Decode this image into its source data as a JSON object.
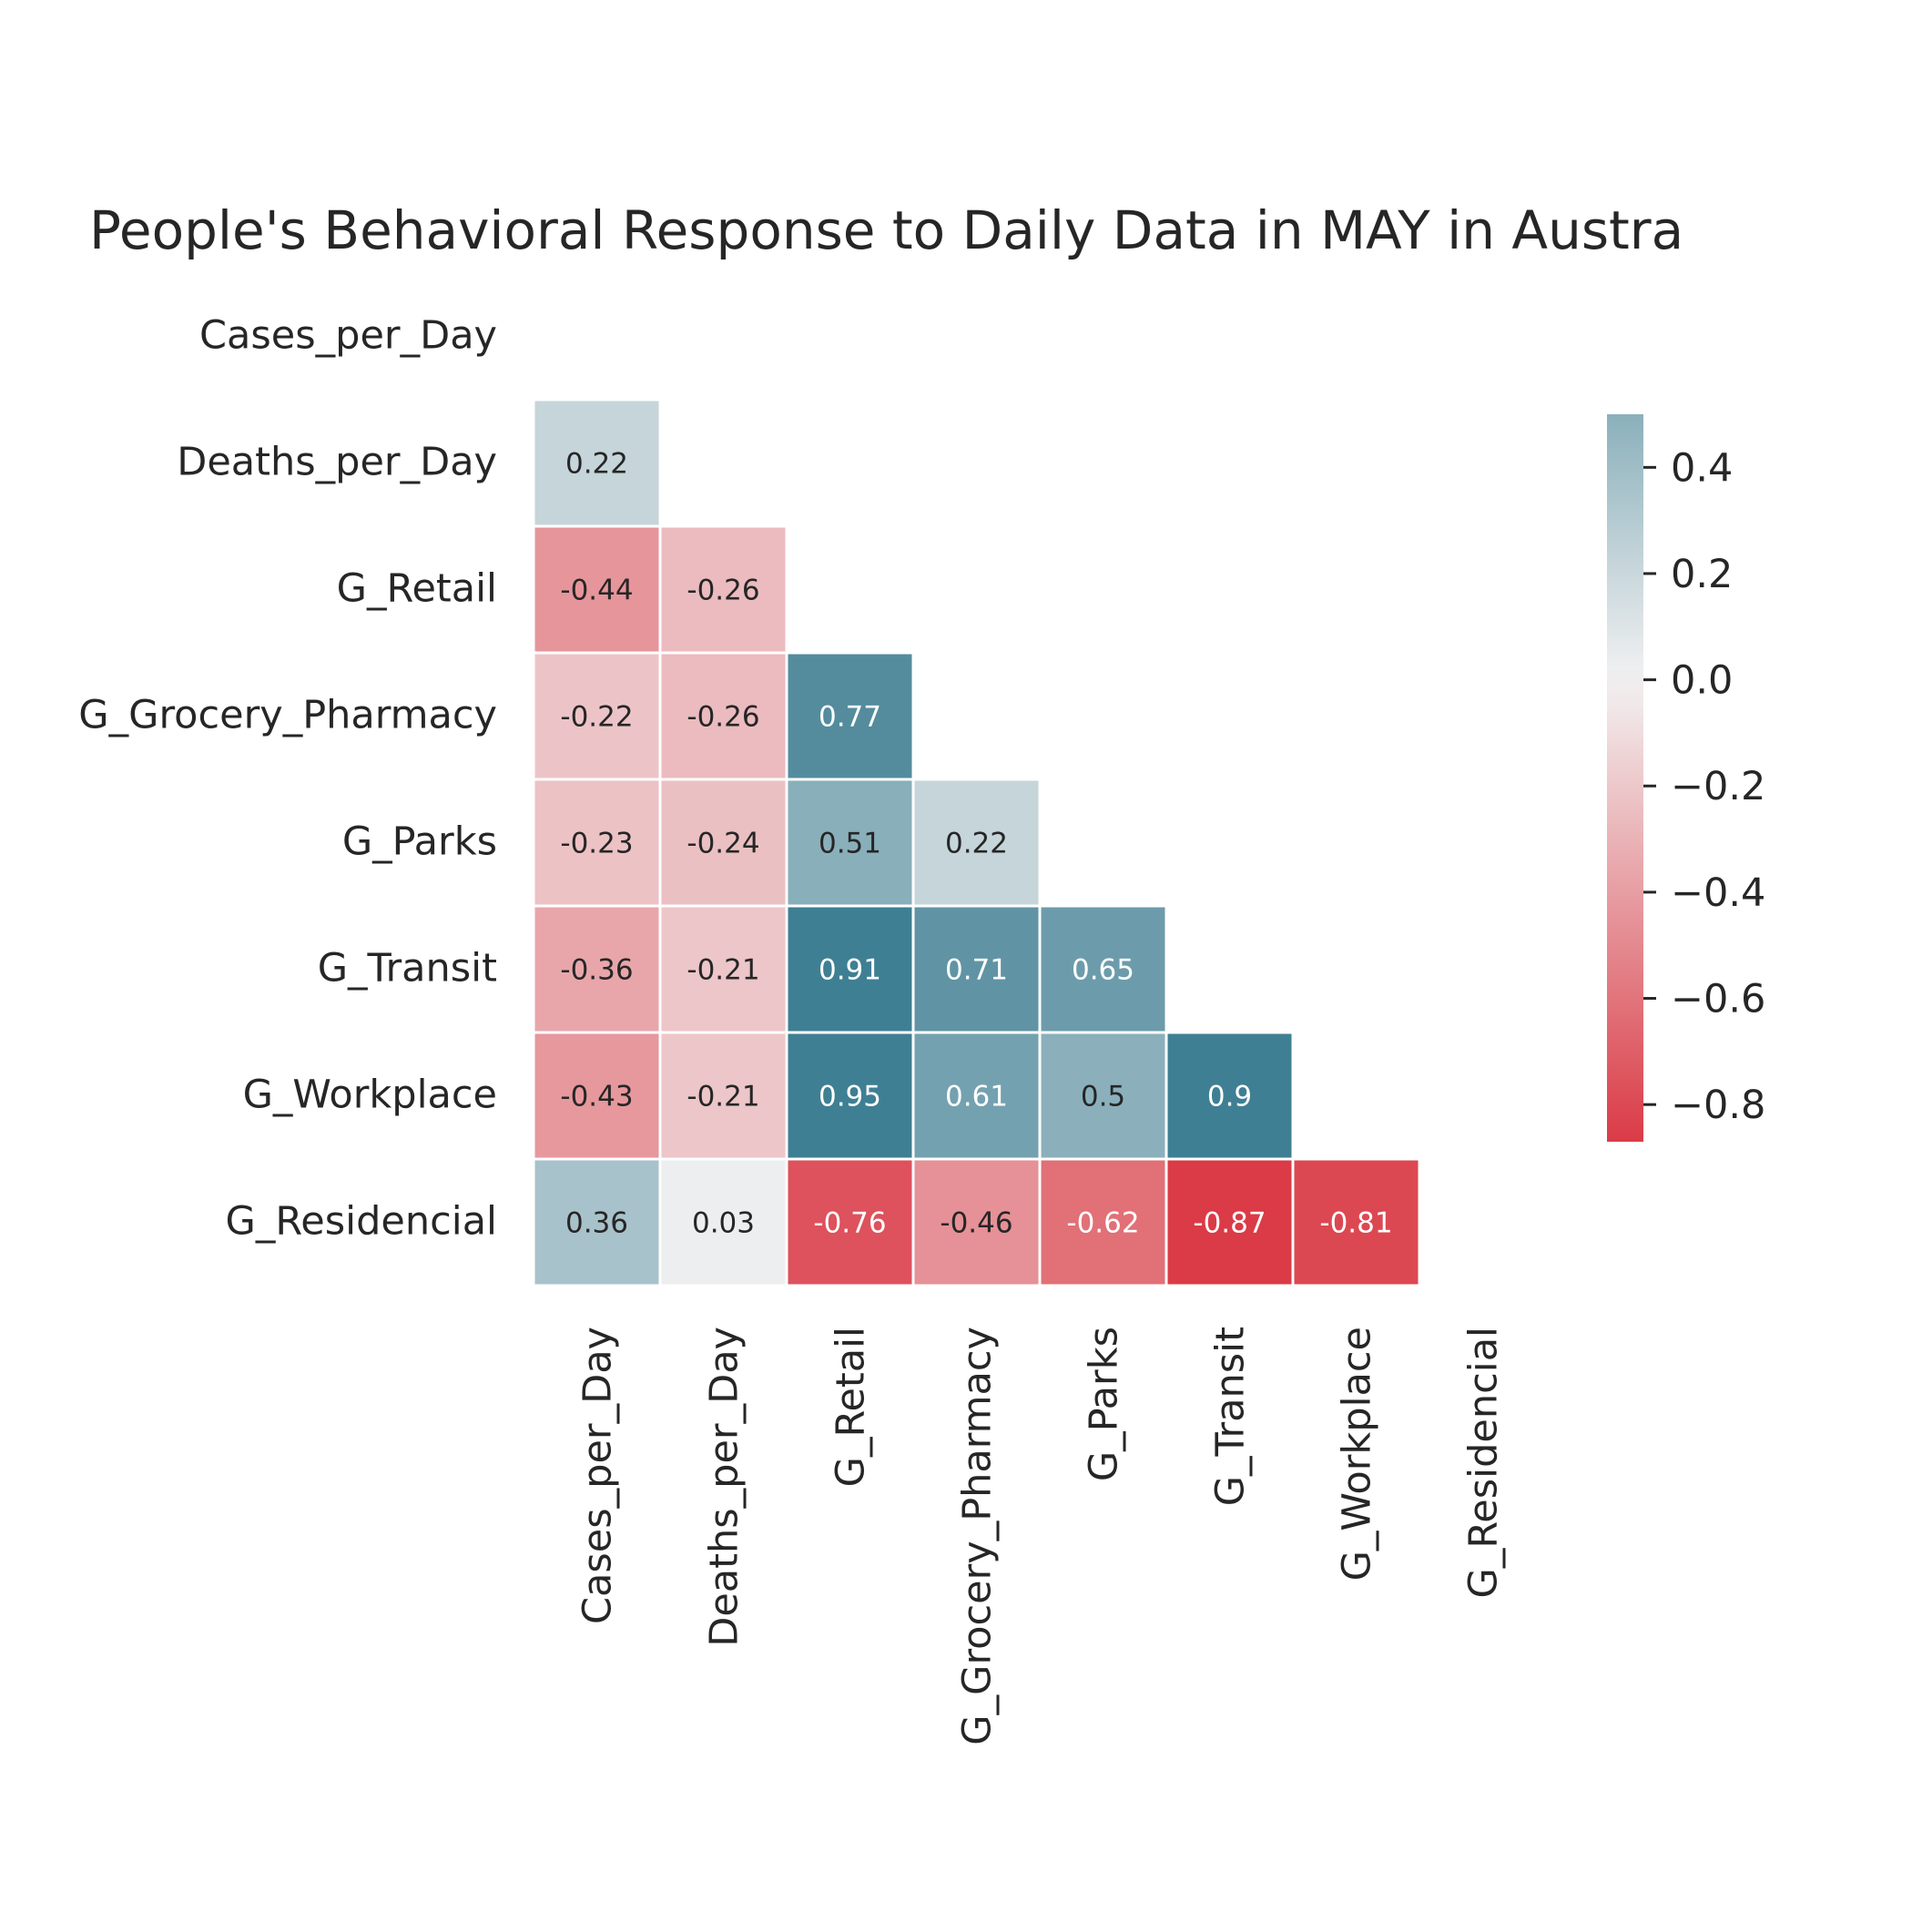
{
  "chart_data": {
    "type": "heatmap",
    "title": "People's Behavioral Response to Daily Data in MAY in Austra",
    "variables": [
      "Cases_per_Day",
      "Deaths_per_Day",
      "G_Retail",
      "G_Grocery_Pharmacy",
      "G_Parks",
      "G_Transit",
      "G_Workplace",
      "G_Residencial"
    ],
    "matrix": [
      [
        null,
        null,
        null,
        null,
        null,
        null,
        null,
        null
      ],
      [
        0.22,
        null,
        null,
        null,
        null,
        null,
        null,
        null
      ],
      [
        -0.44,
        -0.26,
        null,
        null,
        null,
        null,
        null,
        null
      ],
      [
        -0.22,
        -0.26,
        0.77,
        null,
        null,
        null,
        null,
        null
      ],
      [
        -0.23,
        -0.24,
        0.51,
        0.22,
        null,
        null,
        null,
        null
      ],
      [
        -0.36,
        -0.21,
        0.91,
        0.71,
        0.65,
        null,
        null,
        null
      ],
      [
        -0.43,
        -0.21,
        0.95,
        0.61,
        0.5,
        0.9,
        null,
        null
      ],
      [
        0.36,
        0.03,
        -0.76,
        -0.46,
        -0.62,
        -0.87,
        -0.81,
        null
      ]
    ],
    "mask": "upper-triangle-including-diagonal",
    "colorbar": {
      "vmin": -0.87,
      "vmax": 0.5,
      "ticks": [
        0.4,
        0.2,
        0.0,
        -0.2,
        -0.4,
        -0.6,
        -0.8
      ],
      "tick_labels": [
        "0.4",
        "0.2",
        "0.0",
        "−0.2",
        "−0.4",
        "−0.6",
        "−0.8"
      ],
      "low_color": "#da3b46",
      "mid_color": "#f2f2f2",
      "high_color": "#3f7f93"
    }
  }
}
